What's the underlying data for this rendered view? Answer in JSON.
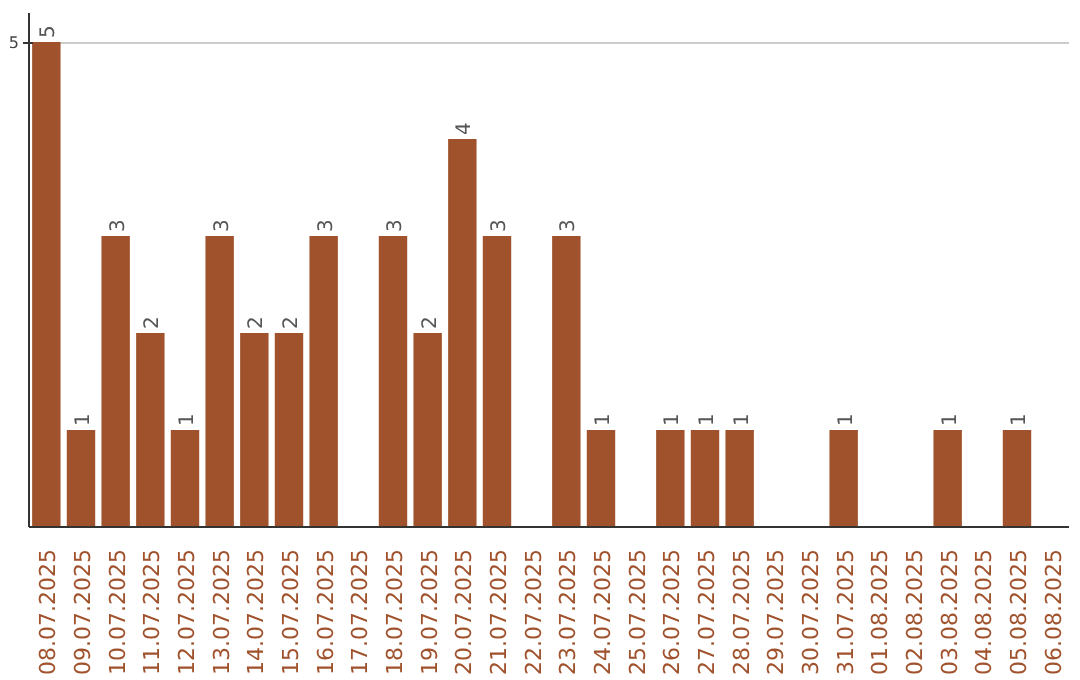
{
  "chart_data": {
    "type": "bar",
    "categories": [
      "08.07.2025",
      "09.07.2025",
      "10.07.2025",
      "11.07.2025",
      "12.07.2025",
      "13.07.2025",
      "14.07.2025",
      "15.07.2025",
      "16.07.2025",
      "17.07.2025",
      "18.07.2025",
      "19.07.2025",
      "20.07.2025",
      "21.07.2025",
      "22.07.2025",
      "23.07.2025",
      "24.07.2025",
      "25.07.2025",
      "26.07.2025",
      "27.07.2025",
      "28.07.2025",
      "29.07.2025",
      "30.07.2025",
      "31.07.2025",
      "01.08.2025",
      "02.08.2025",
      "03.08.2025",
      "04.08.2025",
      "05.08.2025",
      "06.08.2025"
    ],
    "values": [
      5,
      1,
      3,
      2,
      1,
      3,
      2,
      2,
      3,
      0,
      3,
      2,
      4,
      3,
      0,
      3,
      1,
      0,
      1,
      1,
      1,
      0,
      0,
      1,
      0,
      0,
      1,
      0,
      1,
      0
    ],
    "value_labels": [
      "5",
      "1",
      "3",
      "2",
      "1",
      "3",
      "2",
      "2",
      "3",
      null,
      "3",
      "2",
      "4",
      "3",
      null,
      "3",
      "1",
      null,
      "1",
      "1",
      "1",
      null,
      null,
      "1",
      null,
      null,
      "1",
      null,
      "1",
      null
    ],
    "color": "#a0522d",
    "ylim": [
      0,
      5.3
    ],
    "yticks": [
      5
    ],
    "grid": "y"
  }
}
